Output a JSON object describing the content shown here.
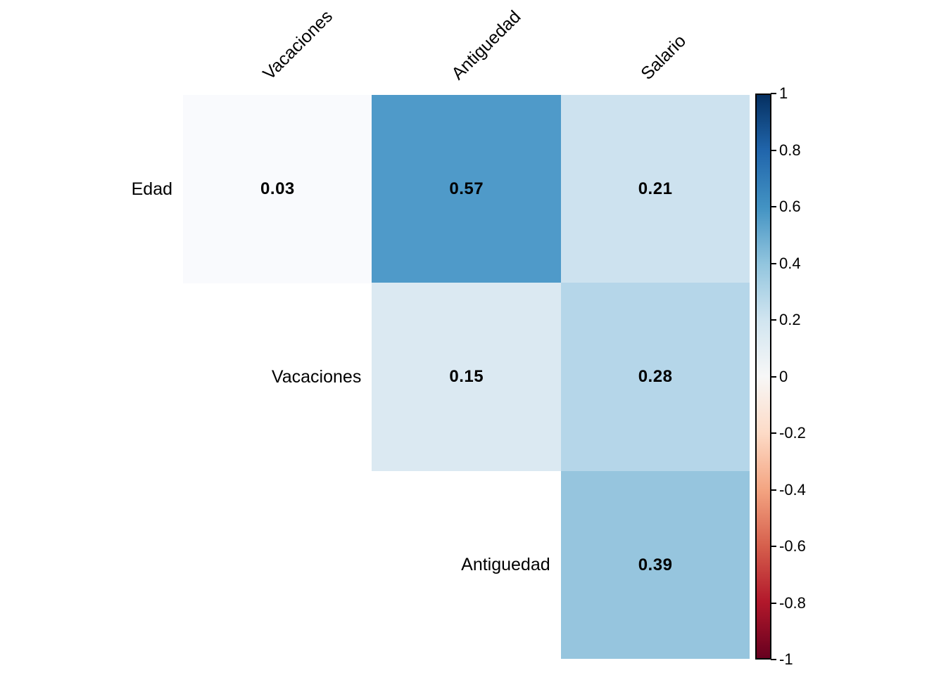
{
  "chart_data": {
    "type": "heatmap",
    "title": "",
    "subtitle": "",
    "description": "Upper-triangle correlation matrix heatmap (diagonal omitted) with numeric correlation values printed in each cell",
    "variables": [
      "Edad",
      "Vacaciones",
      "Antiguedad",
      "Salario"
    ],
    "column_labels": [
      "Vacaciones",
      "Antiguedad",
      "Salario"
    ],
    "row_labels": [
      "Edad",
      "Vacaciones",
      "Antiguedad"
    ],
    "cells": [
      {
        "row": "Edad",
        "col": "Vacaciones",
        "r": 0,
        "c": 0,
        "value": 0.03,
        "display": "0.03",
        "color": "#f9fafd"
      },
      {
        "row": "Edad",
        "col": "Antiguedad",
        "r": 0,
        "c": 1,
        "value": 0.57,
        "display": "0.57",
        "color": "#4f9ac9"
      },
      {
        "row": "Edad",
        "col": "Salario",
        "r": 0,
        "c": 2,
        "value": 0.21,
        "display": "0.21",
        "color": "#cde2ef"
      },
      {
        "row": "Vacaciones",
        "col": "Antiguedad",
        "r": 1,
        "c": 1,
        "value": 0.15,
        "display": "0.15",
        "color": "#dbe9f2"
      },
      {
        "row": "Vacaciones",
        "col": "Salario",
        "r": 1,
        "c": 2,
        "value": 0.28,
        "display": "0.28",
        "color": "#b5d6e9"
      },
      {
        "row": "Antiguedad",
        "col": "Salario",
        "r": 2,
        "c": 2,
        "value": 0.39,
        "display": "0.39",
        "color": "#96c5de"
      }
    ],
    "colorbar": {
      "min": -1,
      "max": 1,
      "tick_labels": [
        "1",
        "0.8",
        "0.6",
        "0.4",
        "0.2",
        "0",
        "-0.2",
        "-0.4",
        "-0.6",
        "-0.8",
        "-1"
      ],
      "colormap": "RdBu",
      "gradient_top_to_bottom": [
        "#053061",
        "#2166ac",
        "#4393c3",
        "#92c5de",
        "#d1e5f0",
        "#f7f7f7",
        "#fddbc7",
        "#f4a582",
        "#d6604d",
        "#b2182b",
        "#67001f"
      ]
    },
    "text_color": "#000000",
    "background_color": "#ffffff",
    "legend_position": "right",
    "grid": false
  }
}
